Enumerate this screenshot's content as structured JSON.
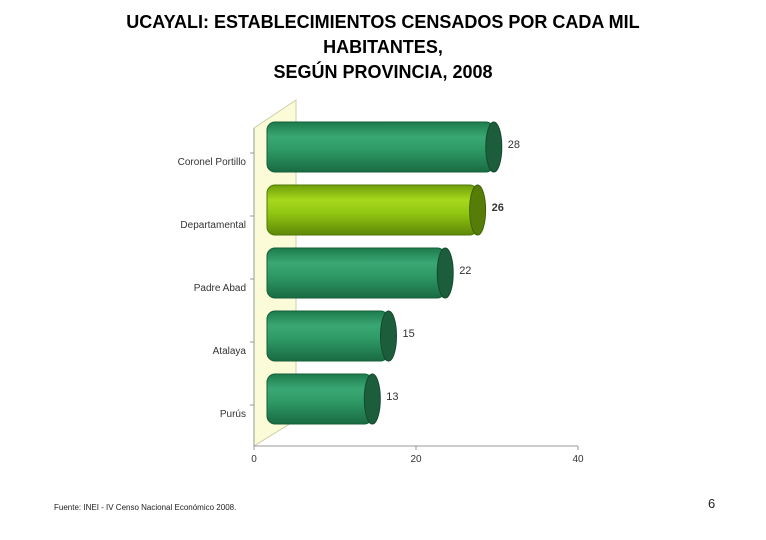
{
  "title": {
    "line1": "UCAYALI: ESTABLECIMIENTOS CENSADOS POR CADA MIL",
    "line2": "HABITANTES,",
    "line3": "SEGÚN PROVINCIA, 2008"
  },
  "chart_data": {
    "type": "bar",
    "orientation": "horizontal",
    "categories": [
      "Coronel Portillo",
      "Departamental",
      "Padre Abad",
      "Atalaya",
      "Purús"
    ],
    "values": [
      28,
      26,
      22,
      15,
      13
    ],
    "value_labels": [
      "28",
      "26",
      "22",
      "15",
      "13"
    ],
    "highlight_index": 1,
    "x_ticks": [
      "0",
      "20",
      "40"
    ],
    "xlim": [
      0,
      40
    ],
    "colors": {
      "bar": "#2e9a66",
      "bar_highlight": "#8fcc10",
      "wall": "#fbfbd8"
    }
  },
  "source": "Fuente: INEI - IV Censo Nacional Económico 2008.",
  "page_number": "6"
}
